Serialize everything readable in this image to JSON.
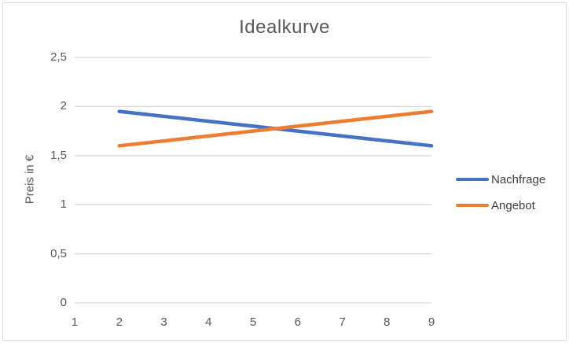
{
  "title": "Idealkurve",
  "ylabel": "Preis in €",
  "colors": {
    "grid": "#D9D9D9",
    "border": "#DBDBDB",
    "axis_text": "#595959",
    "title_text": "#595959",
    "legend_text": "#404040",
    "nachfrage": "#4472C4",
    "angebot": "#ED7D31"
  },
  "chart_data": {
    "type": "line",
    "title": "Idealkurve",
    "xlabel": "",
    "ylabel": "Preis in €",
    "x": [
      2,
      3,
      4,
      5,
      6,
      7,
      8,
      9
    ],
    "series": [
      {
        "name": "Nachfrage",
        "color": "#4472C4",
        "values": [
          1.95,
          1.9,
          1.85,
          1.8,
          1.75,
          1.7,
          1.65,
          1.6
        ]
      },
      {
        "name": "Angebot",
        "color": "#ED7D31",
        "values": [
          1.6,
          1.65,
          1.7,
          1.75,
          1.8,
          1.85,
          1.9,
          1.95
        ]
      }
    ],
    "xlim": [
      1,
      9
    ],
    "ylim": [
      0,
      2.5
    ],
    "xtick_values": [
      1,
      2,
      3,
      4,
      5,
      6,
      7,
      8,
      9
    ],
    "xtick_labels": [
      "1",
      "2",
      "3",
      "4",
      "5",
      "6",
      "7",
      "8",
      "9"
    ],
    "ytick_values": [
      0,
      0.5,
      1,
      1.5,
      2,
      2.5
    ],
    "ytick_labels": [
      "0",
      "0,5",
      "1",
      "1,5",
      "2",
      "2,5"
    ],
    "grid": true,
    "legend_position": "right"
  }
}
